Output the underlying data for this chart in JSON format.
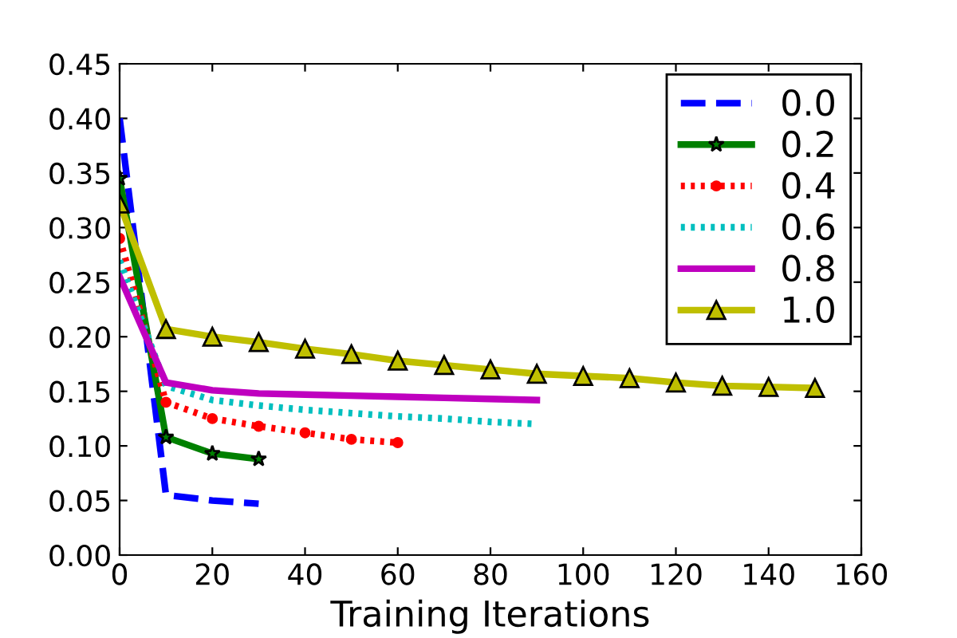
{
  "chart_data": {
    "type": "line",
    "xlabel": "Training Iterations",
    "xlim": [
      0,
      160
    ],
    "xticks": [
      0,
      20,
      40,
      60,
      80,
      100,
      120,
      140,
      160
    ],
    "ylim": [
      0,
      0.45
    ],
    "yticks": [
      {
        "value": 0,
        "label": "0.00"
      },
      0.05,
      {
        "value": 0.1,
        "label": "0.10"
      },
      0.15,
      {
        "value": 0.2,
        "label": "0.20"
      },
      0.25,
      {
        "value": 0.3,
        "label": "0.30"
      },
      0.35,
      {
        "value": 0.4,
        "label": "0.40"
      },
      0.45
    ],
    "grid": false,
    "legend": "top right",
    "series": [
      {
        "name": "0.0",
        "color": "#0000ff",
        "line_style": "dashed",
        "marker": "none",
        "x": [
          0,
          10,
          20,
          30
        ],
        "values": [
          0.4,
          0.055,
          0.05,
          0.047
        ]
      },
      {
        "name": "0.2",
        "color": "#008000",
        "line_style": "solid",
        "marker": "star",
        "x": [
          0,
          10,
          20,
          30
        ],
        "values": [
          0.345,
          0.108,
          0.093,
          0.088
        ]
      },
      {
        "name": "0.4",
        "color": "#ff0000",
        "line_style": "dotted",
        "marker": "circle",
        "x": [
          0,
          10,
          20,
          30,
          40,
          50,
          60
        ],
        "values": [
          0.29,
          0.14,
          0.125,
          0.118,
          0.112,
          0.106,
          0.103
        ]
      },
      {
        "name": "0.6",
        "color": "#00bfbf",
        "line_style": "dotted",
        "marker": "none",
        "x": [
          0,
          10,
          20,
          30,
          40,
          50,
          60,
          70,
          80,
          90
        ],
        "values": [
          0.27,
          0.155,
          0.142,
          0.137,
          0.133,
          0.13,
          0.127,
          0.125,
          0.122,
          0.12
        ]
      },
      {
        "name": "0.8",
        "color": "#bf00bf",
        "line_style": "solid",
        "marker": "none",
        "x": [
          0,
          10,
          20,
          30,
          40,
          50,
          60,
          70,
          80,
          90
        ],
        "values": [
          0.255,
          0.158,
          0.151,
          0.148,
          0.147,
          0.146,
          0.145,
          0.144,
          0.143,
          0.142
        ]
      },
      {
        "name": "1.0",
        "color": "#bfbf00",
        "line_style": "solid",
        "marker": "triangle",
        "x": [
          0,
          10,
          20,
          30,
          40,
          50,
          60,
          70,
          80,
          90,
          100,
          110,
          120,
          130,
          140,
          150
        ],
        "values": [
          0.322,
          0.207,
          0.2,
          0.195,
          0.189,
          0.184,
          0.178,
          0.174,
          0.17,
          0.166,
          0.164,
          0.162,
          0.158,
          0.155,
          0.154,
          0.153
        ]
      }
    ]
  }
}
